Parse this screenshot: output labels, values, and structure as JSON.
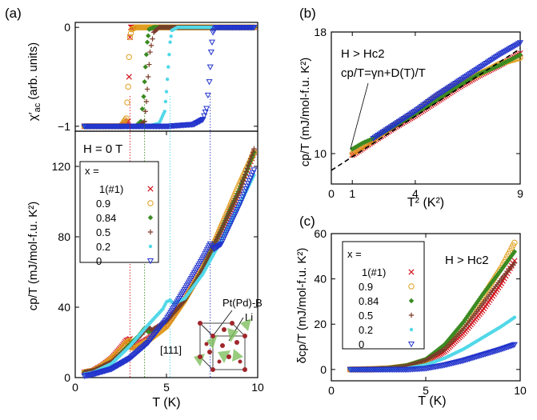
{
  "panel_labels": {
    "a": "(a)",
    "b": "(b)",
    "c": "(c)"
  },
  "colors": {
    "x1": "#d2141e",
    "x09": "#e0a020",
    "x084": "#3b8a22",
    "x05": "#7a3b2a",
    "x02": "#52d8e8",
    "x0": "#2233cc"
  },
  "chart_data": [
    {
      "id": "a_top",
      "type": "scatter",
      "xlabel": "",
      "ylabel": "χ′ac (arb. units)",
      "ylabel_main": "χ′",
      "ylabel_sub": "ac",
      "ylabel_rest": " (arb. units)",
      "xlim": [
        0,
        10
      ],
      "ylim": [
        -1.05,
        0.05
      ],
      "yticks": [
        0,
        -1
      ],
      "ytick_labels": [
        "0",
        "−1"
      ],
      "series": [
        {
          "key": "x1",
          "marker": "x",
          "x": [
            0.5,
            1.0,
            1.5,
            2.0,
            2.5,
            2.9,
            2.95,
            3.0,
            3.05,
            3.1,
            3.2,
            3.5,
            4.5,
            6.0,
            8.0,
            9.8
          ],
          "y": [
            -1,
            -1,
            -1,
            -1,
            -1,
            -0.95,
            -0.5,
            -0.1,
            0,
            0,
            0,
            0,
            0,
            0,
            0,
            0
          ]
        },
        {
          "key": "x09",
          "marker": "o",
          "x": [
            0.5,
            1.5,
            2.5,
            2.8,
            2.9,
            2.95,
            3.0,
            3.1,
            3.3,
            4.5,
            6.5,
            9.8
          ],
          "y": [
            -1,
            -1,
            -1,
            -0.92,
            -0.6,
            -0.3,
            -0.1,
            -0.02,
            0,
            0,
            0,
            0
          ]
        },
        {
          "key": "x084",
          "marker": "diamond",
          "x": [
            0.5,
            2.0,
            3.3,
            3.6,
            3.75,
            3.85,
            3.95,
            4.05,
            4.3,
            5.5,
            8.0,
            9.8
          ],
          "y": [
            -1,
            -1,
            -1,
            -0.95,
            -0.7,
            -0.4,
            -0.15,
            -0.02,
            0,
            0,
            0,
            0
          ]
        },
        {
          "key": "x05",
          "marker": "plus",
          "x": [
            0.5,
            2.0,
            3.5,
            3.8,
            3.9,
            4.0,
            4.1,
            4.3,
            4.6,
            6.0,
            8.0,
            9.8
          ],
          "y": [
            -1,
            -1,
            -1,
            -0.95,
            -0.75,
            -0.5,
            -0.25,
            -0.05,
            0,
            0,
            0,
            0
          ]
        },
        {
          "key": "x02",
          "marker": "dot",
          "x": [
            0.5,
            2.5,
            4.0,
            4.6,
            4.9,
            5.0,
            5.1,
            5.2,
            5.3,
            5.6,
            7.0,
            9.8
          ],
          "y": [
            -1,
            -1,
            -1,
            -0.97,
            -0.85,
            -0.65,
            -0.4,
            -0.15,
            -0.03,
            0,
            0,
            0
          ]
        },
        {
          "key": "x0",
          "marker": "triangle-down",
          "x": [
            0.5,
            3.0,
            5.0,
            6.5,
            7.0,
            7.2,
            7.35,
            7.45,
            7.55,
            7.7,
            8.5,
            9.8
          ],
          "y": [
            -1,
            -1,
            -1,
            -0.98,
            -0.93,
            -0.82,
            -0.55,
            -0.25,
            -0.05,
            0,
            0,
            0
          ]
        }
      ]
    },
    {
      "id": "a_main",
      "type": "scatter",
      "xlabel": "T (K)",
      "ylabel": "cp/T (mJ/mol-f.u. K²)",
      "annotation": "H = 0 T",
      "xlim": [
        0,
        10
      ],
      "ylim": [
        0,
        140
      ],
      "xticks": [
        0,
        5,
        10
      ],
      "yticks": [
        0,
        40,
        80,
        120
      ],
      "legend_title": "x =",
      "legend_position": "upper-left",
      "inset_labels": {
        "ptpd_b": "Pt(Pd)-B",
        "li": "Li",
        "direction": "[111]"
      },
      "tc_lines": [
        {
          "key": "x1",
          "x": 3.0
        },
        {
          "key": "x084",
          "x": 3.8
        },
        {
          "key": "x02",
          "x": 5.2
        },
        {
          "key": "x0",
          "x": 7.4
        }
      ],
      "series": [
        {
          "key": "x1",
          "label": "1(#1)",
          "marker": "x",
          "x": [
            0.5,
            1.0,
            1.5,
            2.0,
            2.5,
            2.8,
            3.0,
            3.1,
            3.2,
            3.5,
            4.0,
            5.0,
            6.0,
            7.0,
            8.0,
            9.0,
            9.8
          ],
          "y": [
            3,
            4,
            7,
            11,
            17,
            21,
            22,
            18,
            17,
            19,
            22,
            30,
            45,
            62,
            84,
            106,
            128
          ]
        },
        {
          "key": "x09",
          "label": "0.9",
          "marker": "o",
          "x": [
            0.5,
            1.0,
            1.5,
            2.0,
            2.5,
            2.8,
            3.0,
            3.1,
            3.3,
            4.0,
            5.0,
            6.0,
            7.0,
            8.0,
            9.0,
            9.8
          ],
          "y": [
            3,
            4,
            7,
            11,
            16,
            20,
            21,
            17,
            17,
            21,
            29,
            44,
            62,
            86,
            110,
            128
          ]
        },
        {
          "key": "x084",
          "label": "0.84",
          "marker": "diamond",
          "x": [
            0.5,
            1.0,
            2.0,
            3.0,
            3.5,
            3.8,
            4.0,
            4.5,
            5.0,
            6.0,
            7.0,
            8.0,
            9.0,
            9.8
          ],
          "y": [
            3,
            4,
            9,
            19,
            24,
            28,
            26,
            28,
            32,
            44,
            62,
            84,
            107,
            128
          ]
        },
        {
          "key": "x05",
          "label": "0.5",
          "marker": "plus",
          "x": [
            0.5,
            1.0,
            2.0,
            3.0,
            3.5,
            4.0,
            4.2,
            4.5,
            5.0,
            6.0,
            7.0,
            8.0,
            9.0,
            9.8
          ],
          "y": [
            3,
            4,
            9,
            18,
            23,
            29,
            27,
            29,
            32,
            44,
            62,
            84,
            106,
            130
          ]
        },
        {
          "key": "x02",
          "label": "0.2",
          "marker": "dot",
          "x": [
            0.5,
            1.0,
            2.0,
            3.0,
            4.0,
            4.8,
            5.0,
            5.2,
            5.4,
            6.0,
            7.0,
            8.0,
            9.0,
            9.8
          ],
          "y": [
            2,
            3,
            8,
            18,
            30,
            39,
            43,
            44,
            42,
            45,
            59,
            78,
            98,
            115
          ]
        },
        {
          "key": "x0",
          "label": "0",
          "marker": "triangle-down",
          "x": [
            0.5,
            1.0,
            2.0,
            3.0,
            4.0,
            5.0,
            6.0,
            7.0,
            7.4,
            7.6,
            8.0,
            9.0,
            9.8
          ],
          "y": [
            1,
            2,
            5,
            11,
            20,
            33,
            50,
            68,
            76,
            73,
            76,
            98,
            118
          ]
        }
      ]
    },
    {
      "id": "b",
      "type": "scatter",
      "xlabel": "T² (K²)",
      "ylabel": "cp/T (mJ/mol-f.u. K²)",
      "annotation_1": "H > Hc2",
      "annotation_2": "cp/T=γn+D(T)/T",
      "xlim": [
        0,
        9
      ],
      "ylim": [
        8,
        18
      ],
      "xticks": [
        0,
        1,
        4,
        9
      ],
      "yticks": [
        10,
        18
      ],
      "fit_line": {
        "x": [
          0,
          9
        ],
        "y": [
          8.9,
          16.9
        ]
      },
      "series": [
        {
          "key": "x1",
          "marker": "x",
          "x": [
            1,
            2,
            3,
            4,
            5,
            6,
            7,
            8,
            9
          ],
          "y": [
            9.9,
            10.8,
            11.7,
            12.5,
            13.4,
            14.3,
            15.1,
            15.8,
            16.6
          ]
        },
        {
          "key": "x09",
          "marker": "o",
          "x": [
            1,
            2,
            3,
            4,
            5,
            6,
            7,
            8,
            9
          ],
          "y": [
            10.0,
            10.9,
            11.9,
            12.7,
            13.8,
            14.6,
            15.2,
            15.9,
            16.3
          ]
        },
        {
          "key": "x084",
          "marker": "diamond",
          "x": [
            1,
            1.5,
            2,
            3,
            4,
            5,
            6,
            7,
            8,
            9
          ],
          "y": [
            10.3,
            10.7,
            11.0,
            11.8,
            12.6,
            13.5,
            14.4,
            15.2,
            15.8,
            16.5
          ]
        },
        {
          "key": "x0",
          "marker": "triangle-down",
          "x": [
            2,
            3,
            4,
            5,
            6,
            7,
            8,
            9
          ],
          "y": [
            11.0,
            11.9,
            12.8,
            13.8,
            14.7,
            15.6,
            16.5,
            17.3
          ]
        }
      ]
    },
    {
      "id": "c",
      "type": "scatter",
      "xlabel": "T (K)",
      "ylabel": "δcp/T (mJ/mol-f.u. K²)",
      "annotation": "H > Hc2",
      "legend_title": "x =",
      "legend_position": "upper-left",
      "xlim": [
        0,
        10
      ],
      "ylim": [
        -5,
        60
      ],
      "xticks": [
        0,
        5,
        10
      ],
      "yticks": [
        0,
        20,
        40,
        60
      ],
      "series": [
        {
          "key": "x1",
          "label": "1(#1)",
          "marker": "x",
          "x": [
            1,
            2,
            3,
            4,
            5,
            6,
            7,
            8,
            9,
            9.7
          ],
          "y": [
            0,
            0,
            0.3,
            1,
            3,
            8,
            16,
            26,
            38,
            48
          ]
        },
        {
          "key": "x09",
          "label": "0.9",
          "marker": "o",
          "x": [
            1,
            2,
            3,
            4,
            5,
            6,
            7,
            8,
            9,
            9.7
          ],
          "y": [
            0,
            0.2,
            0.5,
            1.5,
            4,
            10,
            20,
            32,
            45,
            56
          ]
        },
        {
          "key": "x084",
          "label": "0.84",
          "marker": "diamond",
          "x": [
            1,
            2,
            3,
            4,
            5,
            6,
            7,
            8,
            9,
            9.7
          ],
          "y": [
            0,
            0.2,
            0.6,
            1.8,
            4.5,
            11,
            21,
            33,
            44,
            52
          ]
        },
        {
          "key": "x05",
          "label": "0.5",
          "marker": "plus",
          "x": [
            1,
            2,
            3,
            4,
            5,
            6,
            7,
            8,
            9,
            9.7
          ],
          "y": [
            0,
            0.2,
            0.5,
            1.5,
            4,
            9,
            18,
            29,
            40,
            47
          ]
        },
        {
          "key": "x02",
          "label": "0.2",
          "marker": "dot",
          "x": [
            1,
            2,
            3,
            4,
            5,
            6,
            7,
            8,
            9,
            9.7
          ],
          "y": [
            0,
            0,
            0,
            0.5,
            2,
            5,
            9,
            14,
            19,
            23
          ]
        },
        {
          "key": "x0",
          "label": "0",
          "marker": "triangle-down",
          "x": [
            1,
            2,
            3,
            4,
            5,
            6,
            7,
            8,
            9,
            9.7
          ],
          "y": [
            0,
            0,
            0,
            0,
            0.5,
            2,
            4,
            6.5,
            9,
            11
          ]
        }
      ]
    }
  ]
}
